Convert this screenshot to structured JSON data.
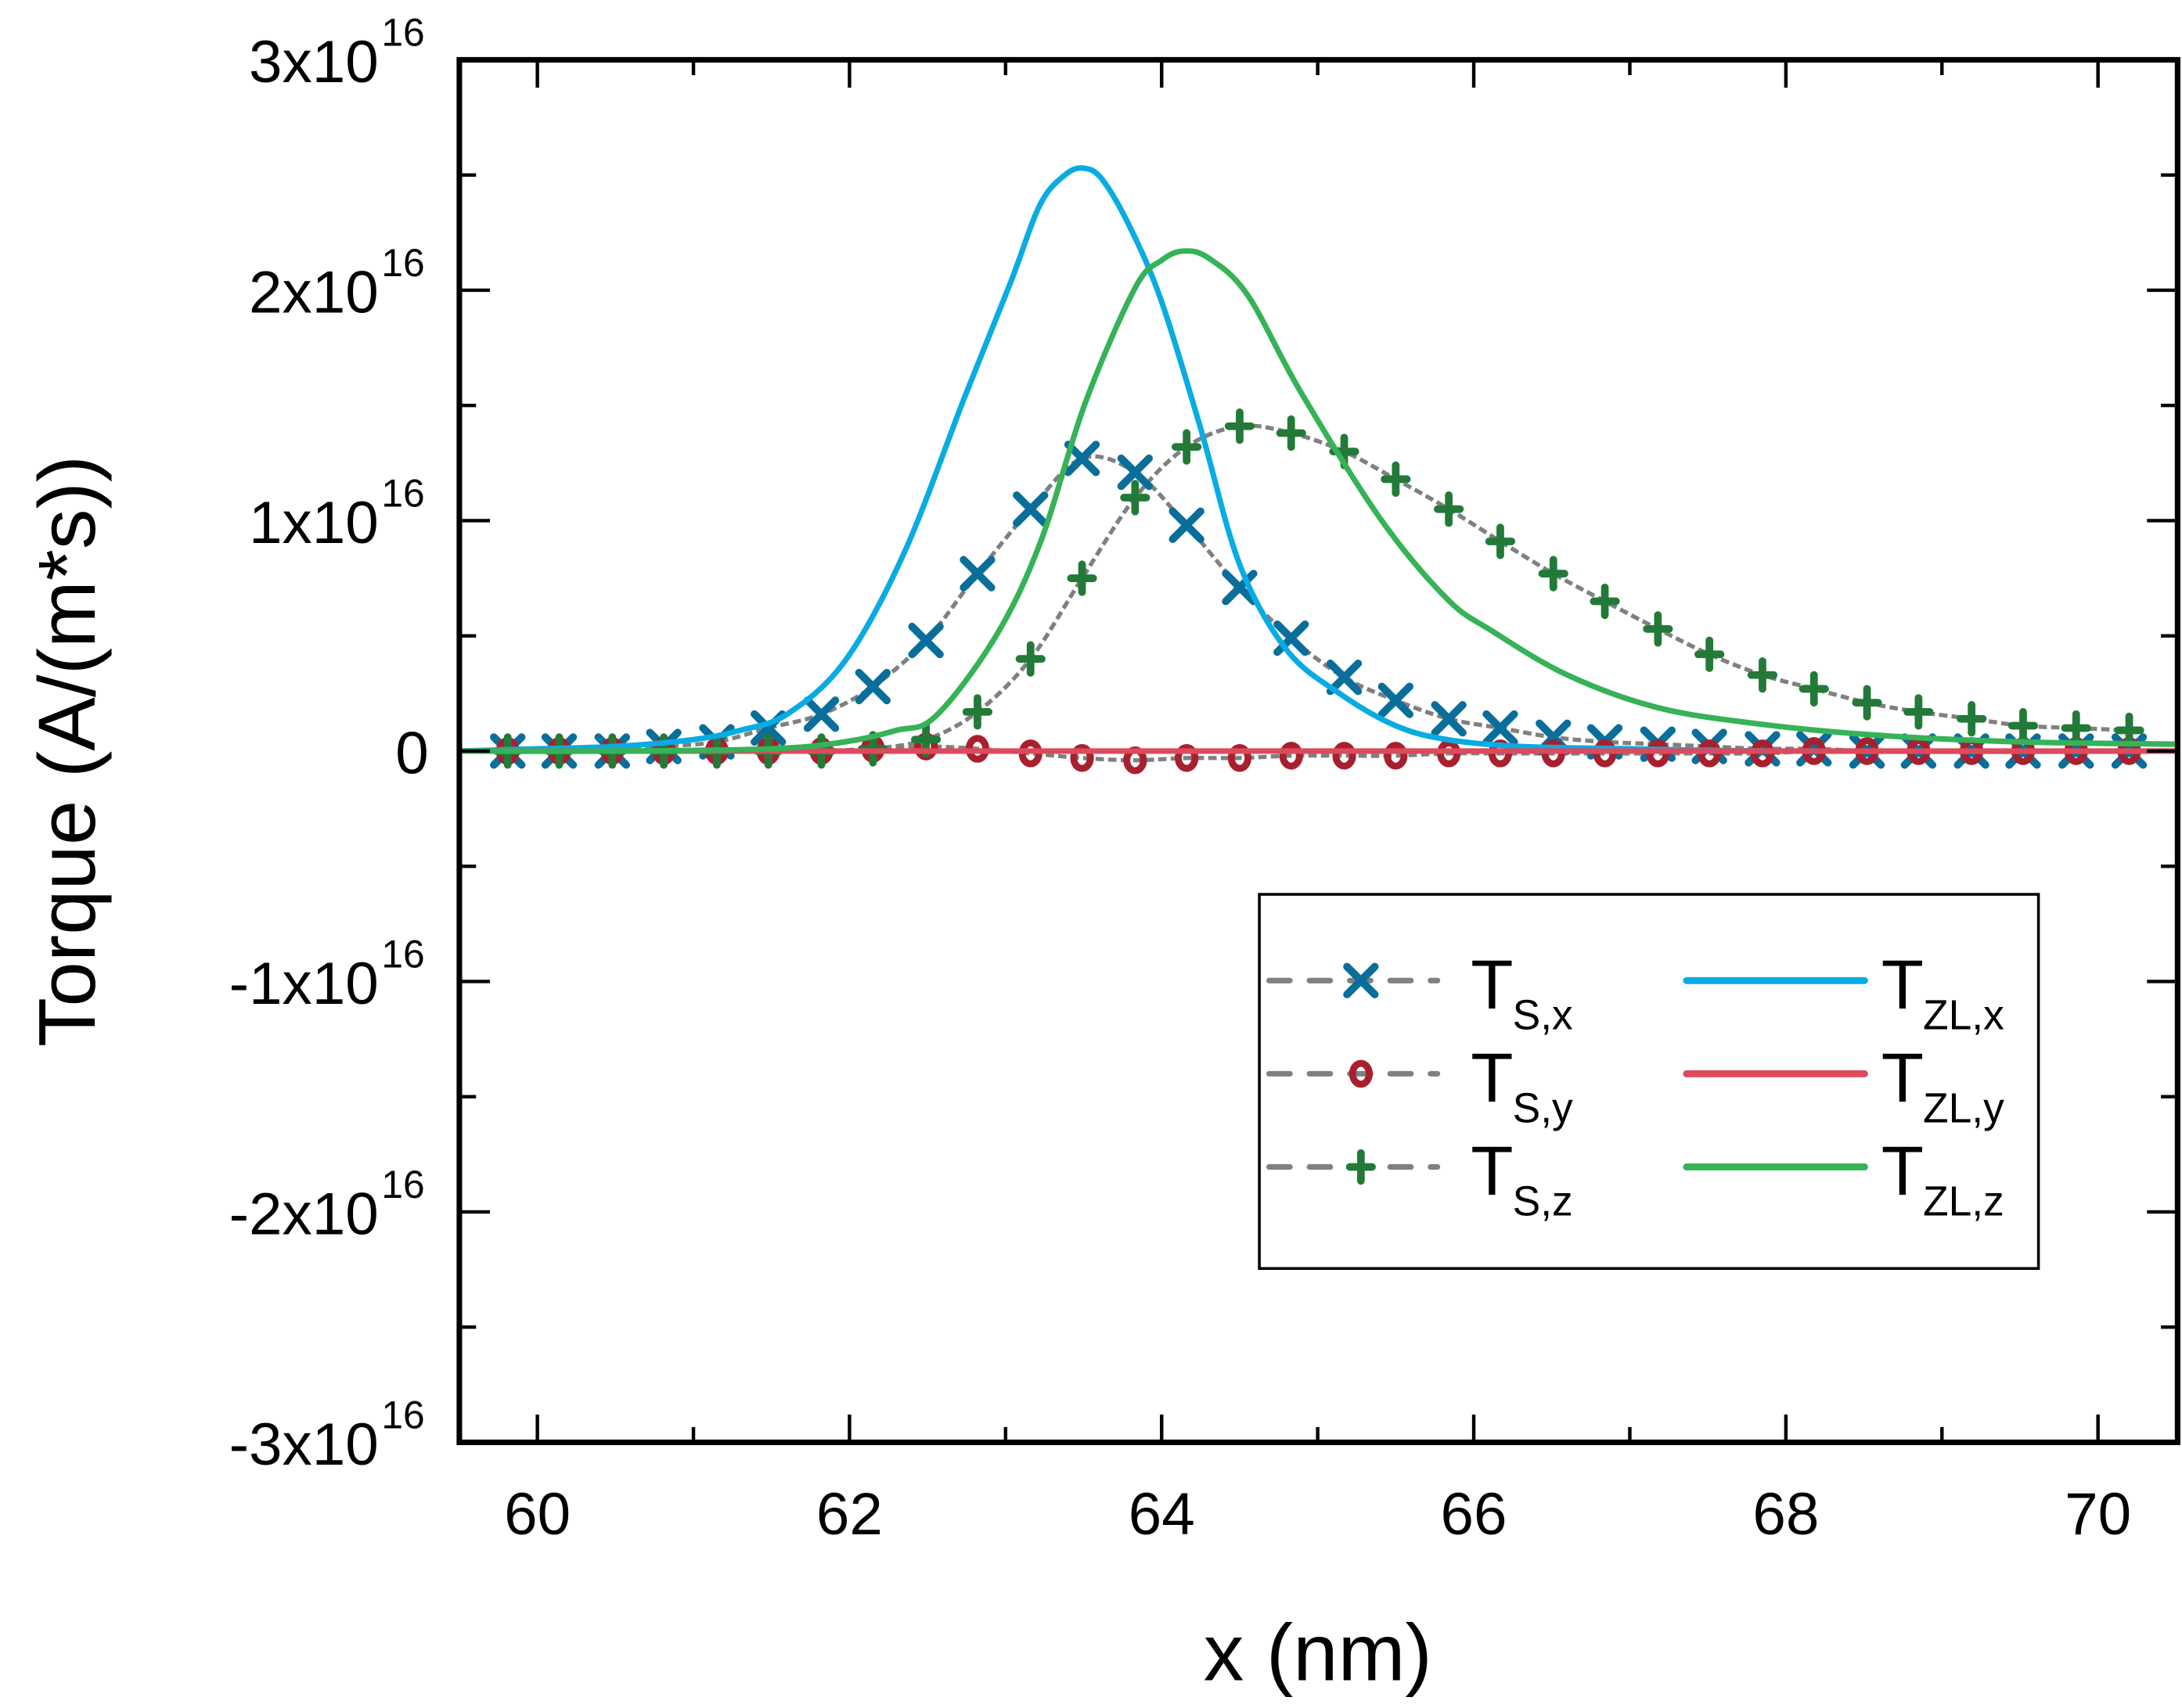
{
  "chart_data": {
    "type": "line",
    "title": "",
    "xlabel": "x (nm)",
    "ylabel": "Torque (A/(m*s))",
    "xlim": [
      59.5,
      70.51
    ],
    "ylim": [
      -3e+16,
      3e+16
    ],
    "x_ticks": [
      60,
      62,
      64,
      66,
      68,
      70
    ],
    "x_tick_labels": [
      "60",
      "62",
      "64",
      "66",
      "68",
      "70"
    ],
    "x_minor_step": 1,
    "y_ticks": [
      -3e+16,
      -2e+16,
      -1e+16,
      0,
      1e+16,
      2e+16,
      3e+16
    ],
    "y_tick_labels": [
      {
        "mantissa": "-3x10",
        "exp": "16"
      },
      {
        "mantissa": "-2x10",
        "exp": "16"
      },
      {
        "mantissa": "-1x10",
        "exp": "16"
      },
      {
        "mantissa": "0",
        "exp": ""
      },
      {
        "mantissa": "1x10",
        "exp": "16"
      },
      {
        "mantissa": "2x10",
        "exp": "16"
      },
      {
        "mantissa": "3x10",
        "exp": "16"
      }
    ],
    "y_minor_step": 5000000000000000.0,
    "grid": false,
    "legend_position": "lower-right",
    "marker_x": [
      59.81,
      60.14,
      60.48,
      60.81,
      61.15,
      61.48,
      61.82,
      62.15,
      62.49,
      62.82,
      63.16,
      63.49,
      63.83,
      64.16,
      64.5,
      64.83,
      65.17,
      65.5,
      65.84,
      66.17,
      66.51,
      66.84,
      67.18,
      67.51,
      67.85,
      68.18,
      68.52,
      68.85,
      69.19,
      69.52,
      69.86,
      70.2
    ],
    "series": [
      {
        "name": "T_S,x",
        "label_main": "T",
        "label_sub": "S,x",
        "style": "dashed-markers",
        "marker": "x",
        "color": "#0a6e9a",
        "line_color": "#808080",
        "y": [
          0.0,
          0.0,
          0.0,
          0.02,
          0.04,
          0.1,
          0.16,
          0.28,
          0.48,
          0.77,
          1.05,
          1.27,
          1.21,
          0.98,
          0.71,
          0.49,
          0.32,
          0.22,
          0.14,
          0.1,
          0.06,
          0.04,
          0.03,
          0.02,
          0.01,
          0.01,
          0.0,
          0.0,
          0.0,
          0.0,
          0.0,
          0.0
        ],
        "y_scale": 1e+16
      },
      {
        "name": "T_S,y",
        "label_main": "T",
        "label_sub": "S,y",
        "style": "dashed-markers",
        "marker": "o",
        "color": "#a8202d",
        "line_color": "#808080",
        "y": [
          0.0,
          0.0,
          0.0,
          0.0,
          0.0,
          0.0,
          0.0,
          0.01,
          0.02,
          0.01,
          -0.01,
          -0.03,
          -0.04,
          -0.03,
          -0.03,
          -0.02,
          -0.02,
          -0.02,
          -0.01,
          -0.01,
          -0.01,
          -0.01,
          -0.01,
          -0.01,
          -0.01,
          0.0,
          0.0,
          0.0,
          0.0,
          0.0,
          0.0,
          0.0
        ],
        "y_scale": 1e+16
      },
      {
        "name": "T_S,z",
        "label_main": "T",
        "label_sub": "S,z",
        "style": "dashed-markers",
        "marker": "+",
        "color": "#237a38",
        "line_color": "#808080",
        "y": [
          0.0,
          0.0,
          0.0,
          0.0,
          0.0,
          0.0,
          0.0,
          0.01,
          0.05,
          0.17,
          0.4,
          0.75,
          1.1,
          1.32,
          1.41,
          1.38,
          1.3,
          1.18,
          1.05,
          0.91,
          0.77,
          0.65,
          0.53,
          0.42,
          0.33,
          0.27,
          0.21,
          0.17,
          0.14,
          0.11,
          0.1,
          0.09
        ],
        "y_scale": 1e+16
      },
      {
        "name": "T_ZL,x",
        "label_main": "T",
        "label_sub": "ZL,x",
        "style": "solid",
        "color": "#09ace2",
        "x": [
          59.5,
          60.0,
          60.5,
          61.0,
          61.3,
          61.6,
          61.97,
          62.35,
          62.74,
          63.03,
          63.22,
          63.38,
          63.5,
          63.62,
          63.8,
          64.0,
          64.25,
          64.5,
          64.8,
          65.14,
          65.5,
          65.83,
          66.3,
          67.0,
          68.0,
          70.51
        ],
        "y": [
          0.0,
          0.01,
          0.02,
          0.05,
          0.09,
          0.16,
          0.39,
          0.86,
          1.54,
          2.03,
          2.37,
          2.5,
          2.53,
          2.48,
          2.27,
          1.95,
          1.4,
          0.81,
          0.44,
          0.25,
          0.11,
          0.05,
          0.02,
          0.01,
          0.0,
          0.0
        ],
        "y_scale": 1e+16
      },
      {
        "name": "T_ZL,y",
        "label_main": "T",
        "label_sub": "ZL,y",
        "style": "solid",
        "color": "#dc4a5c",
        "x": [
          59.5,
          70.51
        ],
        "y": [
          0.0,
          0.0
        ],
        "y_scale": 1e+16
      },
      {
        "name": "T_ZL,z",
        "label_main": "T",
        "label_sub": "ZL,z",
        "style": "solid",
        "color": "#36b257",
        "x": [
          59.5,
          60.5,
          61.5,
          61.97,
          62.3,
          62.55,
          62.93,
          63.22,
          63.51,
          63.83,
          64.0,
          64.14,
          64.3,
          64.55,
          64.89,
          65.4,
          65.83,
          66.12,
          66.6,
          67.17,
          67.8,
          68.56,
          69.5,
          70.51
        ],
        "y": [
          0.0,
          0.0,
          0.01,
          0.04,
          0.09,
          0.15,
          0.49,
          0.9,
          1.51,
          2.01,
          2.13,
          2.17,
          2.14,
          1.98,
          1.56,
          1.01,
          0.66,
          0.52,
          0.33,
          0.19,
          0.12,
          0.07,
          0.04,
          0.03
        ],
        "y_scale": 1e+16
      }
    ]
  }
}
